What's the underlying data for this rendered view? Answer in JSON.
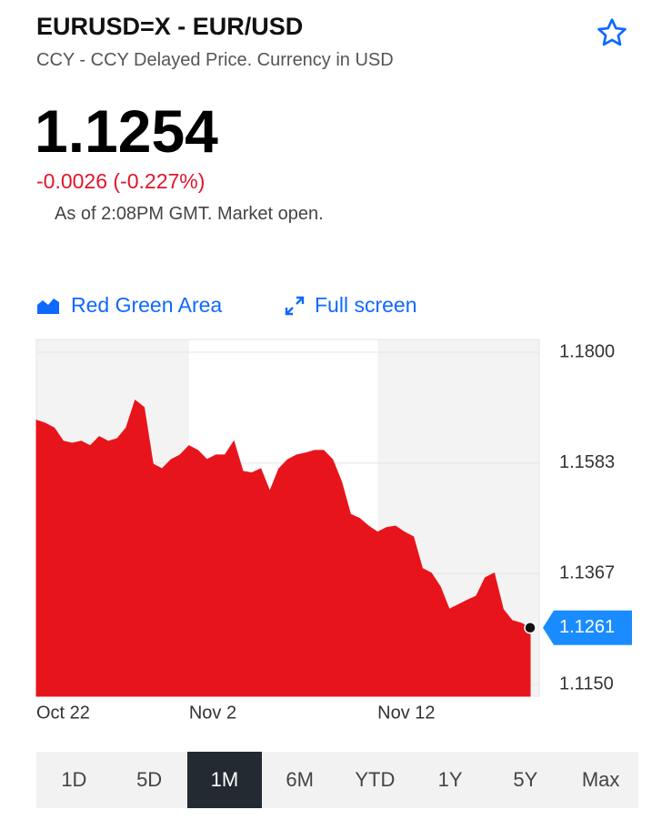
{
  "header": {
    "title": "EURUSD=X - EUR/USD",
    "subtitle": "CCY - CCY Delayed Price. Currency in USD",
    "price": "1.1254",
    "change": "-0.0026 (-0.227%)",
    "status": "As of 2:08PM GMT. Market open."
  },
  "controls": {
    "chart_style": "Red Green Area",
    "fullscreen": "Full screen"
  },
  "chart_data": {
    "type": "area",
    "categories": [
      "Oct 22",
      null,
      null,
      null,
      null,
      null,
      null,
      null,
      null,
      null,
      null,
      null,
      null,
      null,
      null,
      null,
      null,
      "Nov 2",
      null,
      null,
      null,
      null,
      null,
      null,
      null,
      null,
      null,
      null,
      null,
      null,
      null,
      null,
      null,
      null,
      null,
      null,
      null,
      null,
      "Nov 12",
      null,
      null,
      null,
      null,
      null,
      null,
      null,
      null,
      null,
      null,
      null,
      null,
      null,
      null,
      null,
      null,
      null
    ],
    "values": [
      1.1667,
      1.1661,
      1.1652,
      1.1626,
      1.1622,
      1.1626,
      1.1617,
      1.1635,
      1.1626,
      1.1631,
      1.1652,
      1.1706,
      1.1692,
      1.1581,
      1.1572,
      1.159,
      1.1599,
      1.1617,
      1.1608,
      1.159,
      1.1599,
      1.1599,
      1.1626,
      1.1567,
      1.1564,
      1.1572,
      1.1528,
      1.1572,
      1.159,
      1.1599,
      1.1603,
      1.1608,
      1.1608,
      1.159,
      1.1546,
      1.1483,
      1.1475,
      1.146,
      1.1448,
      1.1457,
      1.146,
      1.1448,
      1.1439,
      1.1377,
      1.1368,
      1.1341,
      1.1297,
      1.1306,
      1.1315,
      1.1323,
      1.1359,
      1.1368,
      1.1297,
      1.1275,
      1.127,
      1.1261
    ],
    "color": "#e8141c",
    "ylim": [
      1.1127,
      1.1825
    ],
    "yticks": [
      {
        "value": 1.18,
        "label": "1.1800"
      },
      1.1583,
      1.1367,
      {
        "value": 1.115,
        "label": "1.1150"
      }
    ],
    "grid": true,
    "current_value": 1.1261
  },
  "ranges": {
    "options": [
      "1D",
      "5D",
      "1M",
      "6M",
      "YTD",
      "1Y",
      "5Y",
      "Max"
    ],
    "selected": 2
  }
}
